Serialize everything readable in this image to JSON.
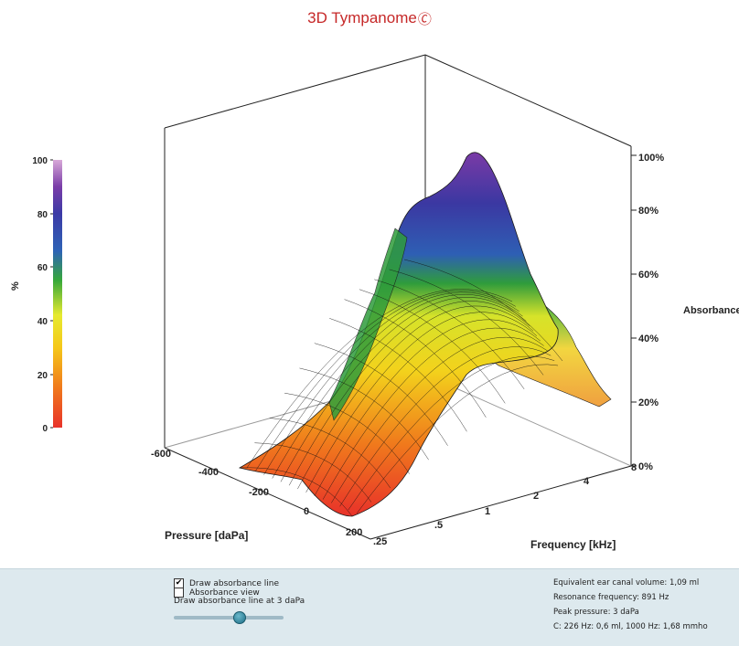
{
  "title": "3D Tympanome",
  "chart_data": {
    "type": "surface",
    "title": "3D Tympanome",
    "x_axis": {
      "label": "Pressure [daPa]",
      "ticks": [
        "-600",
        "-400",
        "-200",
        "0",
        "200"
      ],
      "range": [
        -600,
        200
      ]
    },
    "y_axis": {
      "label": "Frequency [kHz]",
      "ticks": [
        ".25",
        ".5",
        "1",
        "2",
        "4",
        "8"
      ],
      "range": [
        0.25,
        8
      ]
    },
    "z_axis": {
      "label": "Absorbance",
      "ticks": [
        "0%",
        "20%",
        "40%",
        "60%",
        "80%",
        "100%"
      ],
      "range": [
        0,
        100
      ]
    },
    "colorbar": {
      "label": "%",
      "ticks": [
        "0",
        "20",
        "40",
        "60",
        "80",
        "100"
      ],
      "range": [
        0,
        100
      ],
      "colors": [
        "#e8322a",
        "#f07a1c",
        "#f5c81a",
        "#e6ea30",
        "#36a83a",
        "#2e63b6",
        "#3c3aa6",
        "#7a3da8",
        "#d8a8d8"
      ]
    },
    "peak": {
      "pressure": 3,
      "frequency_khz": 0.891,
      "absorbance": 100
    },
    "profiles": {
      "at_0.25_kHz": {
        "pressure": [
          -600,
          -400,
          -200,
          -100,
          0,
          100,
          200
        ],
        "absorbance": [
          3,
          5,
          8,
          12,
          16,
          10,
          4
        ]
      },
      "at_1_kHz": {
        "pressure": [
          -600,
          -400,
          -200,
          -100,
          0,
          100,
          200
        ],
        "absorbance": [
          8,
          18,
          45,
          80,
          100,
          60,
          12
        ]
      },
      "at_8_kHz": {
        "pressure": [
          -600,
          -400,
          -200,
          -100,
          0,
          100,
          200
        ],
        "absorbance": [
          20,
          22,
          25,
          30,
          33,
          28,
          12
        ]
      }
    }
  },
  "panel": {
    "draw_line_label": "Draw absorbance line",
    "draw_line_checked": true,
    "absorbance_view_label": "Absorbance view",
    "absorbance_view_checked": false,
    "line_at_label": "Draw absorbance line at 3 daPa",
    "slider_value_dapa": 3
  },
  "info": {
    "volume": "Equivalent ear canal volume: 1,09 ml",
    "resonance": "Resonance frequency: 891 Hz",
    "peak_pressure": "Peak pressure: 3 daPa",
    "compliance": "C: 226 Hz: 0,6 ml, 1000 Hz: 1,68 mmho"
  }
}
